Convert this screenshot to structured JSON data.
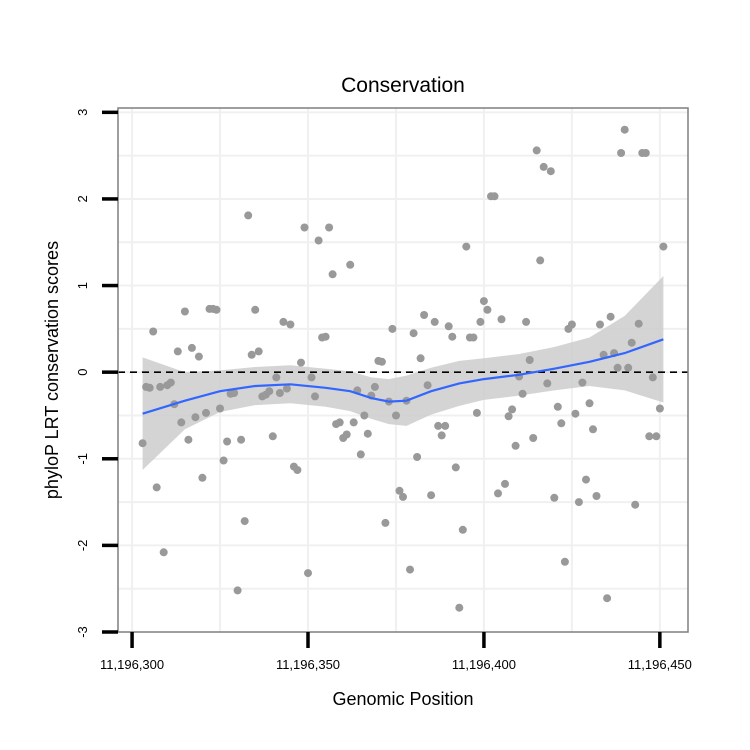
{
  "chart_data": {
    "type": "scatter",
    "title": "Conservation",
    "xlabel": "Genomic Position",
    "ylabel": "phyloP LRT conservation scores",
    "xlim": [
      11196296,
      11196458
    ],
    "ylim": [
      -3,
      3.05
    ],
    "x_ticks": [
      11196300,
      11196350,
      11196400,
      11196450
    ],
    "x_tick_labels": [
      "11,196,300",
      "11,196,350",
      "11,196,400",
      "11,196,450"
    ],
    "y_ticks": [
      -3,
      -2,
      -1,
      0,
      1,
      2,
      3
    ],
    "y_tick_labels": [
      "-3",
      "-2",
      "-1",
      "0",
      "1",
      "2",
      "3"
    ],
    "grid": true,
    "reference_line": {
      "y": 0,
      "style": "dashed"
    },
    "colors": {
      "points": "#999999",
      "smooth_line": "#3366ff",
      "confidence_band": "#cccccc",
      "grid": "#f0f0f0",
      "border": "#7f7f7f"
    },
    "points": [
      [
        11196303,
        -0.82
      ],
      [
        11196304,
        -0.17
      ],
      [
        11196305,
        -0.18
      ],
      [
        11196306,
        0.47
      ],
      [
        11196307,
        -1.33
      ],
      [
        11196308,
        -0.17
      ],
      [
        11196309,
        -2.08
      ],
      [
        11196310,
        -0.15
      ],
      [
        11196311,
        -0.12
      ],
      [
        11196312,
        -0.37
      ],
      [
        11196313,
        0.24
      ],
      [
        11196314,
        -0.58
      ],
      [
        11196315,
        0.7
      ],
      [
        11196316,
        -0.78
      ],
      [
        11196317,
        0.28
      ],
      [
        11196318,
        -0.52
      ],
      [
        11196319,
        0.18
      ],
      [
        11196320,
        -1.22
      ],
      [
        11196321,
        -0.47
      ],
      [
        11196322,
        0.73
      ],
      [
        11196323,
        0.73
      ],
      [
        11196324,
        0.72
      ],
      [
        11196325,
        -0.42
      ],
      [
        11196326,
        -1.02
      ],
      [
        11196327,
        -0.8
      ],
      [
        11196328,
        -0.25
      ],
      [
        11196329,
        -0.24
      ],
      [
        11196330,
        -2.52
      ],
      [
        11196331,
        -0.78
      ],
      [
        11196332,
        -1.72
      ],
      [
        11196333,
        1.81
      ],
      [
        11196334,
        0.2
      ],
      [
        11196335,
        0.72
      ],
      [
        11196336,
        0.24
      ],
      [
        11196337,
        -0.28
      ],
      [
        11196338,
        -0.26
      ],
      [
        11196339,
        -0.22
      ],
      [
        11196340,
        -0.74
      ],
      [
        11196341,
        -0.06
      ],
      [
        11196342,
        -0.24
      ],
      [
        11196343,
        0.58
      ],
      [
        11196344,
        -0.19
      ],
      [
        11196345,
        0.55
      ],
      [
        11196346,
        -1.09
      ],
      [
        11196347,
        -1.13
      ],
      [
        11196348,
        0.11
      ],
      [
        11196349,
        1.67
      ],
      [
        11196350,
        -2.32
      ],
      [
        11196351,
        -0.06
      ],
      [
        11196352,
        -0.28
      ],
      [
        11196353,
        1.52
      ],
      [
        11196354,
        0.4
      ],
      [
        11196355,
        0.41
      ],
      [
        11196356,
        1.67
      ],
      [
        11196357,
        1.13
      ],
      [
        11196358,
        -0.6
      ],
      [
        11196359,
        -0.58
      ],
      [
        11196360,
        -0.76
      ],
      [
        11196361,
        -0.72
      ],
      [
        11196362,
        1.24
      ],
      [
        11196363,
        -0.58
      ],
      [
        11196364,
        -0.21
      ],
      [
        11196365,
        -0.95
      ],
      [
        11196366,
        -0.5
      ],
      [
        11196367,
        -0.71
      ],
      [
        11196368,
        -0.27
      ],
      [
        11196369,
        -0.17
      ],
      [
        11196370,
        0.13
      ],
      [
        11196371,
        0.12
      ],
      [
        11196372,
        -1.74
      ],
      [
        11196373,
        -0.34
      ],
      [
        11196374,
        0.5
      ],
      [
        11196375,
        -0.5
      ],
      [
        11196376,
        -1.37
      ],
      [
        11196377,
        -1.44
      ],
      [
        11196378,
        -0.33
      ],
      [
        11196379,
        -2.28
      ],
      [
        11196380,
        0.45
      ],
      [
        11196381,
        -0.98
      ],
      [
        11196382,
        0.16
      ],
      [
        11196383,
        0.66
      ],
      [
        11196384,
        -0.15
      ],
      [
        11196385,
        -1.42
      ],
      [
        11196386,
        0.58
      ],
      [
        11196387,
        -0.62
      ],
      [
        11196388,
        -0.73
      ],
      [
        11196389,
        -0.62
      ],
      [
        11196390,
        0.53
      ],
      [
        11196391,
        0.41
      ],
      [
        11196392,
        -1.1
      ],
      [
        11196393,
        -2.72
      ],
      [
        11196394,
        -1.82
      ],
      [
        11196395,
        1.45
      ],
      [
        11196396,
        0.4
      ],
      [
        11196397,
        0.4
      ],
      [
        11196398,
        -0.47
      ],
      [
        11196399,
        0.58
      ],
      [
        11196400,
        0.82
      ],
      [
        11196401,
        0.72
      ],
      [
        11196402,
        2.03
      ],
      [
        11196403,
        2.03
      ],
      [
        11196404,
        -1.4
      ],
      [
        11196405,
        0.61
      ],
      [
        11196406,
        -1.29
      ],
      [
        11196407,
        -0.51
      ],
      [
        11196408,
        -0.43
      ],
      [
        11196409,
        -0.85
      ],
      [
        11196410,
        -0.05
      ],
      [
        11196411,
        -0.25
      ],
      [
        11196412,
        0.58
      ],
      [
        11196413,
        0.14
      ],
      [
        11196414,
        -0.76
      ],
      [
        11196415,
        2.56
      ],
      [
        11196416,
        1.29
      ],
      [
        11196417,
        2.37
      ],
      [
        11196418,
        -0.13
      ],
      [
        11196419,
        2.32
      ],
      [
        11196420,
        -1.45
      ],
      [
        11196421,
        -0.4
      ],
      [
        11196422,
        -0.59
      ],
      [
        11196423,
        -2.19
      ],
      [
        11196424,
        0.5
      ],
      [
        11196425,
        0.55
      ],
      [
        11196426,
        -0.48
      ],
      [
        11196427,
        -1.5
      ],
      [
        11196428,
        -0.12
      ],
      [
        11196429,
        -1.24
      ],
      [
        11196430,
        -0.36
      ],
      [
        11196431,
        -0.66
      ],
      [
        11196432,
        -1.43
      ],
      [
        11196433,
        0.55
      ],
      [
        11196434,
        0.2
      ],
      [
        11196435,
        -2.61
      ],
      [
        11196436,
        0.64
      ],
      [
        11196437,
        0.22
      ],
      [
        11196438,
        0.05
      ],
      [
        11196439,
        2.53
      ],
      [
        11196440,
        2.8
      ],
      [
        11196441,
        0.05
      ],
      [
        11196442,
        0.34
      ],
      [
        11196443,
        -1.53
      ],
      [
        11196444,
        0.56
      ],
      [
        11196445,
        2.53
      ],
      [
        11196446,
        2.53
      ],
      [
        11196447,
        -0.74
      ],
      [
        11196448,
        -0.06
      ],
      [
        11196449,
        -0.74
      ],
      [
        11196450,
        -0.42
      ],
      [
        11196451,
        1.45
      ]
    ],
    "smooth_line": {
      "x": [
        11196303,
        11196315,
        11196325,
        11196335,
        11196345,
        11196355,
        11196362,
        11196368,
        11196373,
        11196378,
        11196385,
        11196393,
        11196400,
        11196410,
        11196420,
        11196430,
        11196440,
        11196451
      ],
      "y": [
        -0.48,
        -0.33,
        -0.22,
        -0.16,
        -0.14,
        -0.18,
        -0.22,
        -0.3,
        -0.34,
        -0.33,
        -0.22,
        -0.13,
        -0.08,
        -0.03,
        0.04,
        0.12,
        0.22,
        0.38
      ],
      "lower": [
        -1.13,
        -0.66,
        -0.46,
        -0.38,
        -0.36,
        -0.4,
        -0.45,
        -0.54,
        -0.6,
        -0.62,
        -0.49,
        -0.39,
        -0.32,
        -0.27,
        -0.21,
        -0.16,
        -0.21,
        -0.35
      ],
      "upper": [
        0.17,
        0.0,
        0.02,
        0.06,
        0.08,
        0.04,
        0.01,
        -0.06,
        -0.08,
        -0.04,
        0.05,
        0.13,
        0.16,
        0.21,
        0.29,
        0.4,
        0.65,
        1.11
      ]
    }
  }
}
